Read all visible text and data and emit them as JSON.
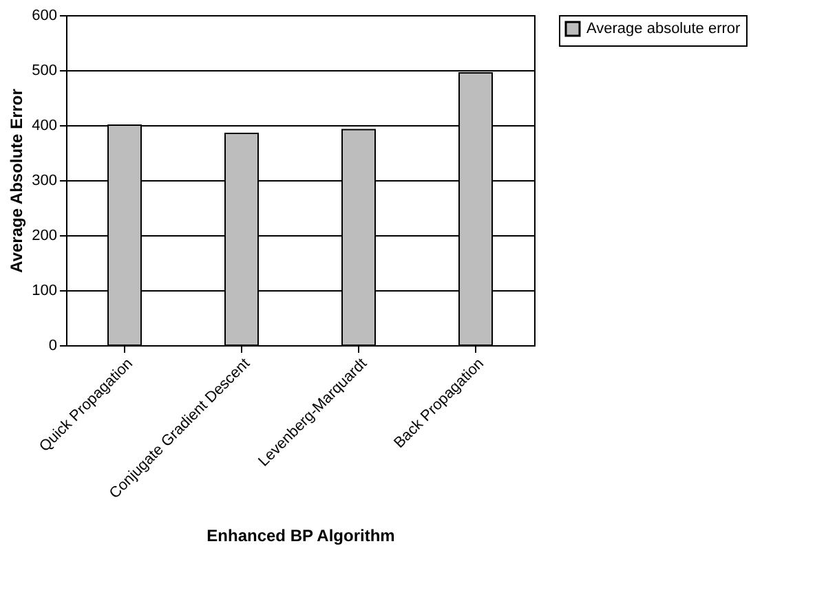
{
  "chart_data": {
    "type": "bar",
    "xlabel": "Enhanced BP Algorithm",
    "ylabel": "Average Absolute Error",
    "categories": [
      "Quick Propagation",
      "Conjugate Gradient Descent",
      "Levenberg-Marquardt",
      "Back Propagation"
    ],
    "series": [
      {
        "name": "Average absolute error",
        "color": "#bdbdbd",
        "values": [
          400,
          385,
          392,
          495
        ]
      }
    ],
    "ylim": [
      0,
      600
    ],
    "yticks": [
      0,
      100,
      200,
      300,
      400,
      500,
      600
    ],
    "grid": "y",
    "legend": "right"
  }
}
